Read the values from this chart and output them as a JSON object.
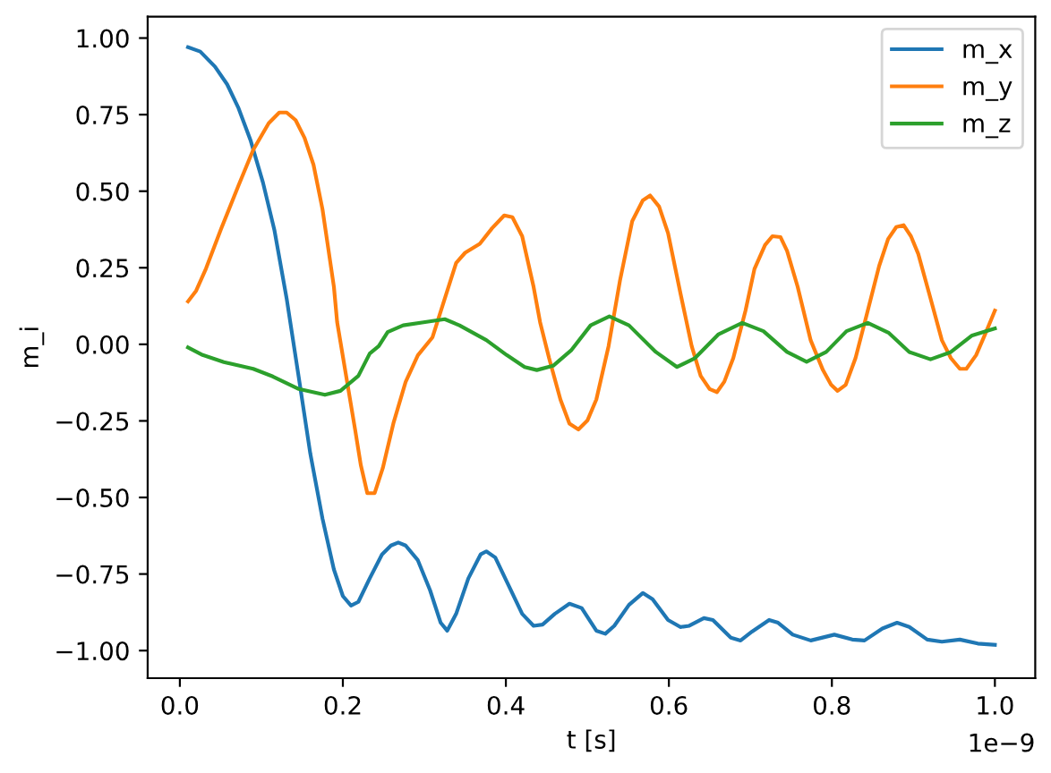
{
  "chart_data": {
    "type": "line",
    "xlabel": "t [s]",
    "ylabel": "m_i",
    "xlim": [
      -0.0395,
      1.0495
    ],
    "ylim": [
      -1.09,
      1.07
    ],
    "xticks": [
      {
        "value": 0,
        "label": "0.0"
      },
      {
        "value": 0.2,
        "label": "0.2"
      },
      {
        "value": 0.4,
        "label": "0.4"
      },
      {
        "value": 0.6,
        "label": "0.6"
      },
      {
        "value": 0.8,
        "label": "0.8"
      },
      {
        "value": 1.0,
        "label": "1.0"
      }
    ],
    "yticks": [
      {
        "value": -1.0,
        "label": "−1.00"
      },
      {
        "value": -0.75,
        "label": "−0.75"
      },
      {
        "value": -0.5,
        "label": "−0.50"
      },
      {
        "value": -0.25,
        "label": "−0.25"
      },
      {
        "value": 0,
        "label": "0.00"
      },
      {
        "value": 0.25,
        "label": "0.25"
      },
      {
        "value": 0.5,
        "label": "0.50"
      },
      {
        "value": 0.75,
        "label": "0.75"
      },
      {
        "value": 1.0,
        "label": "1.00"
      }
    ],
    "legend": "top right",
    "annotations": [
      "1e−9"
    ],
    "series": [
      {
        "name": "m_x",
        "color": "#1f77b4",
        "x": [
          0.01,
          0.025,
          0.043,
          0.058,
          0.072,
          0.087,
          0.102,
          0.116,
          0.131,
          0.146,
          0.16,
          0.175,
          0.189,
          0.2,
          0.21,
          0.219,
          0.233,
          0.248,
          0.259,
          0.268,
          0.277,
          0.292,
          0.307,
          0.32,
          0.328,
          0.339,
          0.354,
          0.369,
          0.376,
          0.387,
          0.401,
          0.42,
          0.434,
          0.445,
          0.46,
          0.478,
          0.493,
          0.511,
          0.522,
          0.533,
          0.551,
          0.568,
          0.58,
          0.599,
          0.614,
          0.625,
          0.643,
          0.654,
          0.676,
          0.688,
          0.702,
          0.723,
          0.734,
          0.752,
          0.774,
          0.803,
          0.825,
          0.84,
          0.862,
          0.88,
          0.895,
          0.917,
          0.935,
          0.957,
          0.979,
          1.0
        ],
        "values": [
          0.97,
          0.956,
          0.907,
          0.849,
          0.771,
          0.664,
          0.528,
          0.373,
          0.15,
          -0.11,
          -0.356,
          -0.569,
          -0.735,
          -0.822,
          -0.853,
          -0.841,
          -0.764,
          -0.686,
          -0.657,
          -0.647,
          -0.657,
          -0.705,
          -0.803,
          -0.909,
          -0.935,
          -0.88,
          -0.764,
          -0.686,
          -0.676,
          -0.696,
          -0.774,
          -0.88,
          -0.919,
          -0.915,
          -0.88,
          -0.847,
          -0.861,
          -0.935,
          -0.945,
          -0.919,
          -0.851,
          -0.812,
          -0.832,
          -0.9,
          -0.923,
          -0.919,
          -0.894,
          -0.9,
          -0.958,
          -0.967,
          -0.938,
          -0.9,
          -0.909,
          -0.948,
          -0.967,
          -0.948,
          -0.964,
          -0.967,
          -0.928,
          -0.909,
          -0.923,
          -0.964,
          -0.971,
          -0.964,
          -0.977,
          -0.981
        ]
      },
      {
        "name": "m_y",
        "color": "#ff7f0e",
        "x": [
          0.01,
          0.02,
          0.032,
          0.05,
          0.072,
          0.09,
          0.109,
          0.122,
          0.131,
          0.142,
          0.153,
          0.164,
          0.175,
          0.189,
          0.193,
          0.204,
          0.215,
          0.222,
          0.23,
          0.239,
          0.249,
          0.262,
          0.277,
          0.292,
          0.31,
          0.325,
          0.339,
          0.35,
          0.368,
          0.383,
          0.398,
          0.408,
          0.42,
          0.434,
          0.442,
          0.453,
          0.467,
          0.478,
          0.489,
          0.5,
          0.511,
          0.526,
          0.54,
          0.555,
          0.568,
          0.577,
          0.588,
          0.599,
          0.614,
          0.628,
          0.639,
          0.65,
          0.659,
          0.668,
          0.679,
          0.694,
          0.705,
          0.718,
          0.727,
          0.737,
          0.745,
          0.758,
          0.774,
          0.789,
          0.799,
          0.807,
          0.817,
          0.829,
          0.844,
          0.858,
          0.869,
          0.879,
          0.888,
          0.897,
          0.906,
          0.921,
          0.935,
          0.946,
          0.957,
          0.965,
          0.977,
          0.988,
          1.0
        ],
        "values": [
          0.14,
          0.175,
          0.247,
          0.373,
          0.519,
          0.635,
          0.722,
          0.757,
          0.757,
          0.732,
          0.674,
          0.586,
          0.441,
          0.188,
          0.072,
          -0.103,
          -0.278,
          -0.394,
          -0.486,
          -0.486,
          -0.404,
          -0.258,
          -0.123,
          -0.036,
          0.023,
          0.149,
          0.266,
          0.299,
          0.328,
          0.379,
          0.421,
          0.415,
          0.353,
          0.188,
          0.072,
          -0.045,
          -0.181,
          -0.259,
          -0.278,
          -0.249,
          -0.18,
          -0.006,
          0.208,
          0.402,
          0.47,
          0.486,
          0.45,
          0.363,
          0.169,
          -0.006,
          -0.103,
          -0.146,
          -0.156,
          -0.122,
          -0.045,
          0.11,
          0.246,
          0.324,
          0.353,
          0.35,
          0.305,
          0.188,
          0.013,
          -0.084,
          -0.132,
          -0.152,
          -0.132,
          -0.045,
          0.11,
          0.256,
          0.344,
          0.383,
          0.389,
          0.353,
          0.295,
          0.15,
          0.013,
          -0.045,
          -0.08,
          -0.08,
          -0.035,
          0.033,
          0.11
        ]
      },
      {
        "name": "m_z",
        "color": "#2ca02c",
        "x": [
          0.01,
          0.028,
          0.054,
          0.09,
          0.114,
          0.146,
          0.178,
          0.197,
          0.219,
          0.233,
          0.244,
          0.255,
          0.274,
          0.299,
          0.325,
          0.343,
          0.376,
          0.401,
          0.423,
          0.438,
          0.458,
          0.48,
          0.504,
          0.527,
          0.551,
          0.584,
          0.61,
          0.632,
          0.661,
          0.69,
          0.716,
          0.745,
          0.769,
          0.793,
          0.818,
          0.844,
          0.87,
          0.895,
          0.921,
          0.946,
          0.972,
          1.0
        ],
        "values": [
          -0.01,
          -0.035,
          -0.058,
          -0.08,
          -0.105,
          -0.146,
          -0.165,
          -0.152,
          -0.103,
          -0.03,
          -0.006,
          0.04,
          0.062,
          0.072,
          0.082,
          0.062,
          0.014,
          -0.035,
          -0.074,
          -0.084,
          -0.07,
          -0.02,
          0.062,
          0.091,
          0.062,
          -0.025,
          -0.074,
          -0.045,
          0.033,
          0.07,
          0.043,
          -0.025,
          -0.057,
          -0.025,
          0.043,
          0.07,
          0.037,
          -0.025,
          -0.049,
          -0.025,
          0.029,
          0.052
        ]
      }
    ]
  }
}
